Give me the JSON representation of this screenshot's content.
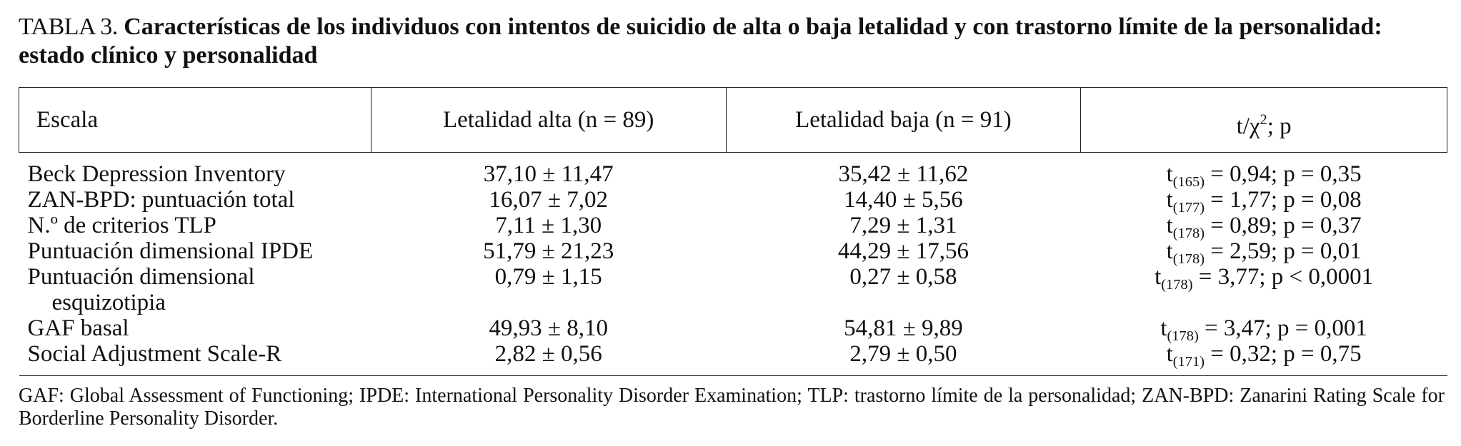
{
  "title": {
    "prefix": "TABLA 3.",
    "text": "Características de los individuos con intentos de suicidio de alta o baja letalidad y con trastorno límite de la personalidad: estado clínico y personalidad"
  },
  "table": {
    "headers": {
      "scale": "Escala",
      "high": "Letalidad alta (n = 89)",
      "low": "Letalidad baja (n = 91)",
      "stat_main": "t/χ",
      "stat_sup": "2",
      "stat_tail": "; p"
    },
    "rows": [
      {
        "scale": "Beck Depression Inventory",
        "scale_cont": "",
        "high": "37,10 ± 11,47",
        "low": "35,42 ± 11,62",
        "stat_pre": "t",
        "stat_sub": "(165)",
        "stat_post": " = 0,94; p = 0,35"
      },
      {
        "scale": "ZAN-BPD: puntuación total",
        "scale_cont": "",
        "high": "16,07 ± 7,02",
        "low": "14,40 ± 5,56",
        "stat_pre": "t",
        "stat_sub": "(177)",
        "stat_post": " = 1,77; p = 0,08"
      },
      {
        "scale": "N.º de criterios TLP",
        "scale_cont": "",
        "high": "7,11 ± 1,30",
        "low": "7,29 ± 1,31",
        "stat_pre": "t",
        "stat_sub": "(178)",
        "stat_post": " = 0,89; p = 0,37"
      },
      {
        "scale": "Puntuación dimensional IPDE",
        "scale_cont": "",
        "high": "51,79 ± 21,23",
        "low": "44,29 ± 17,56",
        "stat_pre": "t",
        "stat_sub": "(178)",
        "stat_post": " = 2,59; p = 0,01"
      },
      {
        "scale": "Puntuación dimensional",
        "scale_cont": "esquizotipia",
        "high": "0,79 ± 1,15",
        "low": "0,27 ± 0,58",
        "stat_pre": "t",
        "stat_sub": "(178)",
        "stat_post": " = 3,77; p < 0,0001"
      },
      {
        "scale": "GAF basal",
        "scale_cont": "",
        "high": "49,93 ± 8,10",
        "low": "54,81 ± 9,89",
        "stat_pre": "t",
        "stat_sub": "(178)",
        "stat_post": " = 3,47; p = 0,001"
      },
      {
        "scale": "Social Adjustment Scale-R",
        "scale_cont": "",
        "high": "2,82 ± 0,56",
        "low": "2,79 ± 0,50",
        "stat_pre": "t",
        "stat_sub": "(171)",
        "stat_post": " = 0,32; p = 0,75"
      }
    ]
  },
  "footnote": "GAF: Global Assessment of Functioning; IPDE: International Personality Disorder Examination; TLP: trastorno límite de la personalidad; ZAN-BPD: Zanarini Rating Scale for Borderline Personality Disorder."
}
